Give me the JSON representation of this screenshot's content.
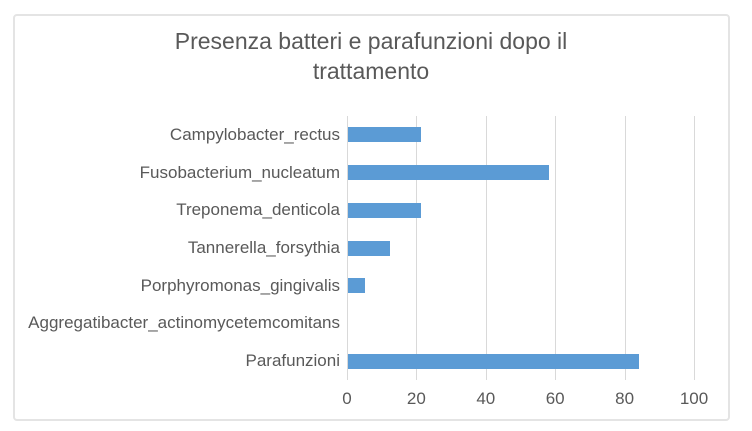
{
  "window": {
    "background": "#ffffff",
    "frame_border_color": "#e4e4e4"
  },
  "chart_data": {
    "type": "bar",
    "orientation": "horizontal",
    "title": "Presenza batteri e parafunzioni dopo il trattamento",
    "categories": [
      "Campylobacter_rectus",
      "Fusobacterium_nucleatum",
      "Treponema_denticola",
      "Tannerella_forsythia",
      "Porphyromonas_gingivalis",
      "Aggregatibacter_actinomycetemcomitans",
      "Parafunzioni"
    ],
    "values": [
      21,
      58,
      21,
      12,
      5,
      0,
      84
    ],
    "xlabel": "",
    "ylabel": "",
    "xlim": [
      0,
      100
    ],
    "xticks": [
      0,
      20,
      40,
      60,
      80,
      100
    ],
    "grid": "vertical",
    "legend": "none",
    "colors": {
      "bar": "#5b9bd5",
      "gridline": "#d9d9d9",
      "text": "#595959",
      "title": "#595959"
    }
  }
}
